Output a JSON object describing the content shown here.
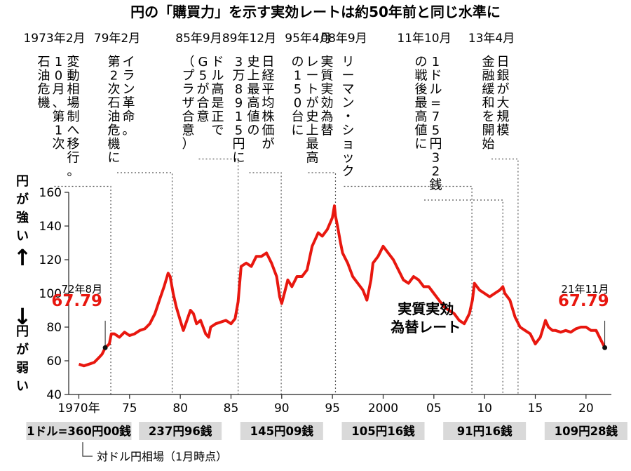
{
  "title": "円の「購買力」を示す実効レートは約50年前と同じ水準に",
  "ylabel_top": "円が強い↑",
  "ylabel_bottom": "↓円が弱い",
  "colors": {
    "line": "#e8170f",
    "accent": "#e8170f",
    "text": "#111111",
    "rate_box": "#d9d9d9",
    "dotted": "#555555"
  },
  "chart_data": {
    "type": "line",
    "xlim": [
      1969,
      2022.5
    ],
    "ylim": [
      40,
      160
    ],
    "yticks": [
      40,
      60,
      80,
      100,
      120,
      140,
      160
    ],
    "xticks": [
      {
        "x": 1970,
        "label": "1970年"
      },
      {
        "x": 1975,
        "label": "75"
      },
      {
        "x": 1980,
        "label": "80"
      },
      {
        "x": 1985,
        "label": "85"
      },
      {
        "x": 1990,
        "label": "90"
      },
      {
        "x": 1995,
        "label": "95"
      },
      {
        "x": 2000,
        "label": "2000"
      },
      {
        "x": 2005,
        "label": "05"
      },
      {
        "x": 2010,
        "label": "10"
      },
      {
        "x": 2015,
        "label": "15"
      },
      {
        "x": 2020,
        "label": "20"
      }
    ],
    "series": [
      {
        "name": "実質実効為替レート",
        "x": [
          1970.0,
          1970.5,
          1971.0,
          1971.5,
          1972.0,
          1972.3,
          1972.6,
          1973.0,
          1973.2,
          1973.5,
          1974.0,
          1974.5,
          1975.0,
          1975.5,
          1976.0,
          1976.5,
          1977.0,
          1977.5,
          1978.0,
          1978.4,
          1978.8,
          1979.0,
          1979.3,
          1979.6,
          1980.0,
          1980.3,
          1980.6,
          1981.0,
          1981.3,
          1981.6,
          1982.0,
          1982.5,
          1982.8,
          1983.0,
          1983.5,
          1984.0,
          1984.5,
          1985.0,
          1985.4,
          1985.7,
          1986.0,
          1986.5,
          1987.0,
          1987.5,
          1988.0,
          1988.5,
          1989.0,
          1989.5,
          1989.8,
          1990.0,
          1990.3,
          1990.6,
          1991.0,
          1991.5,
          1992.0,
          1992.5,
          1993.0,
          1993.3,
          1993.6,
          1994.0,
          1994.5,
          1995.0,
          1995.2,
          1995.3,
          1995.5,
          1995.8,
          1996.0,
          1996.5,
          1997.0,
          1997.5,
          1998.0,
          1998.4,
          1998.8,
          1999.0,
          1999.5,
          2000.0,
          2000.5,
          2001.0,
          2001.5,
          2002.0,
          2002.5,
          2003.0,
          2003.5,
          2004.0,
          2004.5,
          2005.0,
          2005.5,
          2006.0,
          2006.5,
          2007.0,
          2007.5,
          2008.0,
          2008.5,
          2008.8,
          2009.0,
          2009.5,
          2010.0,
          2010.5,
          2011.0,
          2011.5,
          2011.8,
          2012.0,
          2012.5,
          2013.0,
          2013.5,
          2014.0,
          2014.5,
          2015.0,
          2015.5,
          2016.0,
          2016.3,
          2016.7,
          2017.0,
          2017.5,
          2018.0,
          2018.5,
          2019.0,
          2019.5,
          2020.0,
          2020.5,
          2021.0,
          2021.5,
          2021.85
        ],
        "values": [
          58,
          57,
          58,
          59,
          62,
          64,
          67.79,
          70,
          76,
          76,
          74,
          77,
          75,
          76,
          78,
          79,
          82,
          88,
          97,
          104,
          112,
          110,
          100,
          92,
          84,
          78,
          83,
          90,
          88,
          82,
          84,
          76,
          74,
          80,
          82,
          83,
          84,
          82,
          85,
          95,
          116,
          118,
          116,
          122,
          122,
          124,
          118,
          110,
          98,
          94,
          101,
          108,
          104,
          110,
          110,
          114,
          128,
          132,
          136,
          134,
          138,
          145,
          152,
          146,
          140,
          130,
          124,
          118,
          110,
          106,
          102,
          96,
          108,
          118,
          122,
          128,
          124,
          120,
          114,
          108,
          106,
          110,
          108,
          104,
          104,
          100,
          96,
          92,
          90,
          88,
          84,
          82,
          88,
          96,
          106,
          102,
          100,
          98,
          100,
          102,
          104,
          100,
          96,
          86,
          80,
          78,
          76,
          70,
          74,
          84,
          80,
          78,
          78,
          77,
          78,
          77,
          79,
          80,
          80,
          78,
          78,
          72,
          67.79
        ]
      }
    ],
    "series_label_lines": [
      "実質実効",
      "為替レート"
    ],
    "start_label": {
      "date": "72年8月",
      "value": "67.79",
      "x": 1972.6,
      "y": 67.79
    },
    "end_label": {
      "date": "21年11月",
      "value": "67.79",
      "x": 2021.85,
      "y": 67.79
    },
    "events": [
      {
        "x": 1973.15,
        "head": "1973年2月",
        "cols": [
          "変動相場制へ移行。",
          "10月、第1次",
          "石油危機"
        ]
      },
      {
        "x": 1979.2,
        "head": "79年2月",
        "cols": [
          "イラン革命。",
          "第2次石油危機に"
        ]
      },
      {
        "x": 1985.7,
        "head": "85年9月",
        "cols": [
          "ドル高是正で",
          "G5が合意",
          "（プラザ合意）"
        ]
      },
      {
        "x": 1989.95,
        "head": "89年12月",
        "cols": [
          "日経平均株価が",
          "史上最高値の",
          "3万8915円に"
        ]
      },
      {
        "x": 1995.3,
        "head": "95年4月",
        "cols": [
          "実質実効為替",
          "レートが史上最高",
          "の150台に"
        ]
      },
      {
        "x": 2008.75,
        "head": "08年9月",
        "cols": [
          "リーマン・ショック"
        ]
      },
      {
        "x": 2011.8,
        "head": "11年10月",
        "cols": [
          "1ドル=75円32銭",
          "の戦後最高値に"
        ]
      },
      {
        "x": 2013.3,
        "head": "13年4月",
        "cols": [
          "日銀が大規模",
          "金融緩和を開始"
        ]
      }
    ],
    "exchange_rates": [
      {
        "x": 1970,
        "label": "1ドル=360円00銭"
      },
      {
        "x": 1980,
        "label": "237円96銭"
      },
      {
        "x": 1990,
        "label": "145円09銭"
      },
      {
        "x": 2000,
        "label": "105円16銭"
      },
      {
        "x": 2010,
        "label": "91円16銭"
      },
      {
        "x": 2020,
        "label": "109円28銭"
      }
    ],
    "exchange_rates_note": "対ドル円相場（1月時点）"
  }
}
